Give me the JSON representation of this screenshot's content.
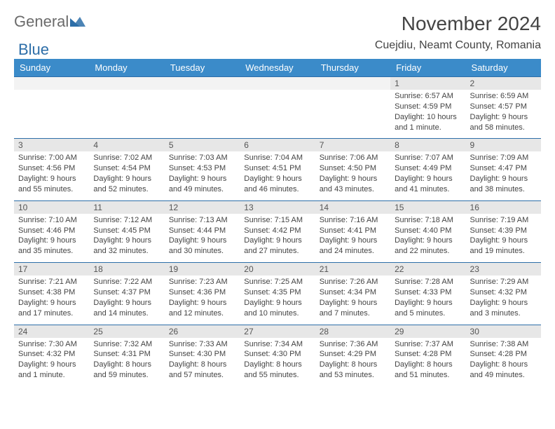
{
  "logo": {
    "general": "General",
    "blue": "Blue"
  },
  "header": {
    "title": "November 2024",
    "location": "Cuejdiu, Neamt County, Romania"
  },
  "day_headers": [
    "Sunday",
    "Monday",
    "Tuesday",
    "Wednesday",
    "Thursday",
    "Friday",
    "Saturday"
  ],
  "colors": {
    "header_bg": "#3b8bc9",
    "header_fg": "#ffffff",
    "daynum_bg": "#e7e7e7",
    "border": "#2d6ea8",
    "text": "#444444"
  },
  "weeks": [
    {
      "nums": [
        "",
        "",
        "",
        "",
        "",
        "1",
        "2"
      ],
      "cells": [
        null,
        null,
        null,
        null,
        null,
        {
          "sunrise": "Sunrise: 6:57 AM",
          "sunset": "Sunset: 4:59 PM",
          "daylight": "Daylight: 10 hours and 1 minute."
        },
        {
          "sunrise": "Sunrise: 6:59 AM",
          "sunset": "Sunset: 4:57 PM",
          "daylight": "Daylight: 9 hours and 58 minutes."
        }
      ]
    },
    {
      "nums": [
        "3",
        "4",
        "5",
        "6",
        "7",
        "8",
        "9"
      ],
      "cells": [
        {
          "sunrise": "Sunrise: 7:00 AM",
          "sunset": "Sunset: 4:56 PM",
          "daylight": "Daylight: 9 hours and 55 minutes."
        },
        {
          "sunrise": "Sunrise: 7:02 AM",
          "sunset": "Sunset: 4:54 PM",
          "daylight": "Daylight: 9 hours and 52 minutes."
        },
        {
          "sunrise": "Sunrise: 7:03 AM",
          "sunset": "Sunset: 4:53 PM",
          "daylight": "Daylight: 9 hours and 49 minutes."
        },
        {
          "sunrise": "Sunrise: 7:04 AM",
          "sunset": "Sunset: 4:51 PM",
          "daylight": "Daylight: 9 hours and 46 minutes."
        },
        {
          "sunrise": "Sunrise: 7:06 AM",
          "sunset": "Sunset: 4:50 PM",
          "daylight": "Daylight: 9 hours and 43 minutes."
        },
        {
          "sunrise": "Sunrise: 7:07 AM",
          "sunset": "Sunset: 4:49 PM",
          "daylight": "Daylight: 9 hours and 41 minutes."
        },
        {
          "sunrise": "Sunrise: 7:09 AM",
          "sunset": "Sunset: 4:47 PM",
          "daylight": "Daylight: 9 hours and 38 minutes."
        }
      ]
    },
    {
      "nums": [
        "10",
        "11",
        "12",
        "13",
        "14",
        "15",
        "16"
      ],
      "cells": [
        {
          "sunrise": "Sunrise: 7:10 AM",
          "sunset": "Sunset: 4:46 PM",
          "daylight": "Daylight: 9 hours and 35 minutes."
        },
        {
          "sunrise": "Sunrise: 7:12 AM",
          "sunset": "Sunset: 4:45 PM",
          "daylight": "Daylight: 9 hours and 32 minutes."
        },
        {
          "sunrise": "Sunrise: 7:13 AM",
          "sunset": "Sunset: 4:44 PM",
          "daylight": "Daylight: 9 hours and 30 minutes."
        },
        {
          "sunrise": "Sunrise: 7:15 AM",
          "sunset": "Sunset: 4:42 PM",
          "daylight": "Daylight: 9 hours and 27 minutes."
        },
        {
          "sunrise": "Sunrise: 7:16 AM",
          "sunset": "Sunset: 4:41 PM",
          "daylight": "Daylight: 9 hours and 24 minutes."
        },
        {
          "sunrise": "Sunrise: 7:18 AM",
          "sunset": "Sunset: 4:40 PM",
          "daylight": "Daylight: 9 hours and 22 minutes."
        },
        {
          "sunrise": "Sunrise: 7:19 AM",
          "sunset": "Sunset: 4:39 PM",
          "daylight": "Daylight: 9 hours and 19 minutes."
        }
      ]
    },
    {
      "nums": [
        "17",
        "18",
        "19",
        "20",
        "21",
        "22",
        "23"
      ],
      "cells": [
        {
          "sunrise": "Sunrise: 7:21 AM",
          "sunset": "Sunset: 4:38 PM",
          "daylight": "Daylight: 9 hours and 17 minutes."
        },
        {
          "sunrise": "Sunrise: 7:22 AM",
          "sunset": "Sunset: 4:37 PM",
          "daylight": "Daylight: 9 hours and 14 minutes."
        },
        {
          "sunrise": "Sunrise: 7:23 AM",
          "sunset": "Sunset: 4:36 PM",
          "daylight": "Daylight: 9 hours and 12 minutes."
        },
        {
          "sunrise": "Sunrise: 7:25 AM",
          "sunset": "Sunset: 4:35 PM",
          "daylight": "Daylight: 9 hours and 10 minutes."
        },
        {
          "sunrise": "Sunrise: 7:26 AM",
          "sunset": "Sunset: 4:34 PM",
          "daylight": "Daylight: 9 hours and 7 minutes."
        },
        {
          "sunrise": "Sunrise: 7:28 AM",
          "sunset": "Sunset: 4:33 PM",
          "daylight": "Daylight: 9 hours and 5 minutes."
        },
        {
          "sunrise": "Sunrise: 7:29 AM",
          "sunset": "Sunset: 4:32 PM",
          "daylight": "Daylight: 9 hours and 3 minutes."
        }
      ]
    },
    {
      "nums": [
        "24",
        "25",
        "26",
        "27",
        "28",
        "29",
        "30"
      ],
      "cells": [
        {
          "sunrise": "Sunrise: 7:30 AM",
          "sunset": "Sunset: 4:32 PM",
          "daylight": "Daylight: 9 hours and 1 minute."
        },
        {
          "sunrise": "Sunrise: 7:32 AM",
          "sunset": "Sunset: 4:31 PM",
          "daylight": "Daylight: 8 hours and 59 minutes."
        },
        {
          "sunrise": "Sunrise: 7:33 AM",
          "sunset": "Sunset: 4:30 PM",
          "daylight": "Daylight: 8 hours and 57 minutes."
        },
        {
          "sunrise": "Sunrise: 7:34 AM",
          "sunset": "Sunset: 4:30 PM",
          "daylight": "Daylight: 8 hours and 55 minutes."
        },
        {
          "sunrise": "Sunrise: 7:36 AM",
          "sunset": "Sunset: 4:29 PM",
          "daylight": "Daylight: 8 hours and 53 minutes."
        },
        {
          "sunrise": "Sunrise: 7:37 AM",
          "sunset": "Sunset: 4:28 PM",
          "daylight": "Daylight: 8 hours and 51 minutes."
        },
        {
          "sunrise": "Sunrise: 7:38 AM",
          "sunset": "Sunset: 4:28 PM",
          "daylight": "Daylight: 8 hours and 49 minutes."
        }
      ]
    }
  ]
}
